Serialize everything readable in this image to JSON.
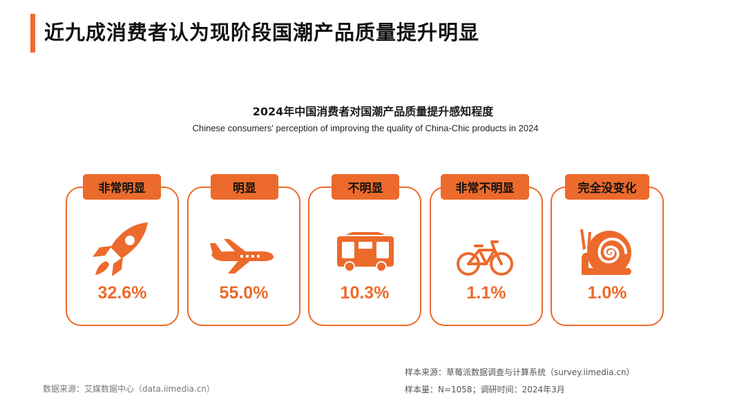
{
  "page": {
    "title": "近九成消费者认为现阶段国潮产品质量提升明显"
  },
  "chart_data": {
    "type": "table",
    "title": "2024年中国消费者对国潮产品质量提升感知程度",
    "subtitle": "Chinese consumers' perception of improving the quality of China-Chic products in 2024",
    "categories": [
      "非常明显",
      "明显",
      "不明显",
      "非常不明显",
      "完全没变化"
    ],
    "values": [
      32.6,
      55.0,
      10.3,
      1.1,
      1.0
    ],
    "value_labels": [
      "32.6%",
      "55.0%",
      "10.3%",
      "1.1%",
      "1.0%"
    ],
    "icons": [
      "rocket-icon",
      "airplane-icon",
      "bus-icon",
      "bicycle-icon",
      "snail-icon"
    ],
    "unit": "%"
  },
  "footer": {
    "data_source": "数据来源：艾媒数据中心（data.iimedia.cn）",
    "sample_source": "样本来源：草莓派数据调查与计算系统（survey.iimedia.cn）",
    "sample_info": "样本量：N=1058；调研时间：2024年3月"
  },
  "colors": {
    "accent": "#ec6a2b",
    "text": "#111111",
    "muted": "#777777"
  }
}
